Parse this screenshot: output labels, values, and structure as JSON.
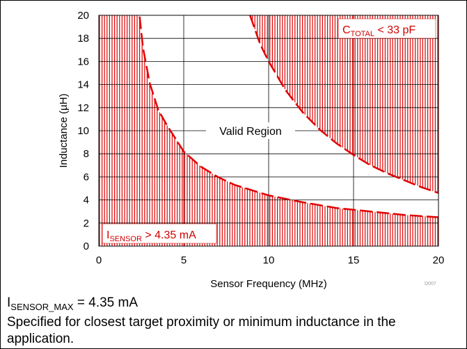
{
  "chart_data": {
    "type": "line",
    "title": "",
    "xlabel": "Sensor Frequency (MHz)",
    "ylabel": "Inductance (µH)",
    "xlim": [
      0,
      20
    ],
    "ylim": [
      0,
      20
    ],
    "x_ticks": [
      "0",
      "5",
      "10",
      "15",
      "20"
    ],
    "y_ticks": [
      "0",
      "2",
      "4",
      "6",
      "8",
      "10",
      "12",
      "14",
      "16",
      "18",
      "20"
    ],
    "grid": true,
    "figure_id": "D007",
    "series": [
      {
        "x": [
          2.4,
          2.6,
          3.0,
          3.5,
          4.0,
          5.0,
          6.0,
          7.0,
          8.0,
          10.0,
          12.0,
          14.0,
          16.0,
          18.0,
          20.0
        ],
        "y": [
          19.9,
          17.2,
          14.1,
          11.8,
          10.5,
          8.2,
          6.9,
          6.0,
          5.3,
          4.4,
          3.8,
          3.3,
          3.0,
          2.7,
          2.5
        ]
      },
      {
        "x": [
          8.9,
          9.5,
          10.0,
          11.0,
          12.0,
          13.0,
          14.0,
          15.0,
          16.0,
          17.0,
          18.0,
          19.0,
          20.0
        ],
        "y": [
          20.0,
          17.5,
          16.0,
          13.5,
          11.6,
          10.1,
          8.9,
          7.9,
          7.0,
          6.3,
          5.7,
          5.1,
          4.6
        ]
      }
    ],
    "annotations": {
      "valid_region": "Valid Region",
      "isensor": {
        "main": "I",
        "sub": "SENSOR",
        "rest": " > 4.35 mA"
      },
      "ctotal": {
        "main": "C",
        "sub": "TOTAL",
        "rest": " < 33 pF"
      }
    },
    "colors": {
      "hatch": "#e00000",
      "curve": "#e00000",
      "grid": "#000000"
    }
  },
  "caption": {
    "line1": {
      "main": "I",
      "sub": "SENSOR_MAX",
      "rest": " = 4.35 mA"
    },
    "line2": "Specified for closest target proximity or minimum inductance in the application."
  }
}
